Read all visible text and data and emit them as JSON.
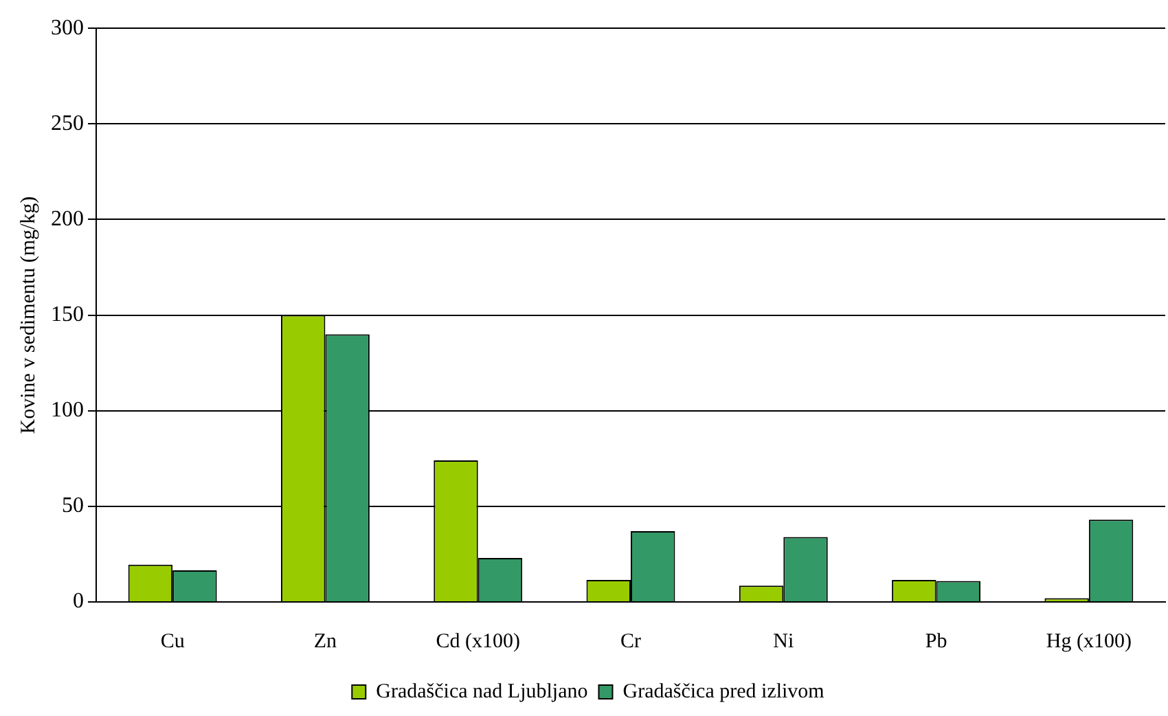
{
  "chart_data": {
    "type": "bar",
    "ylabel": "Kovine v sedimentu (mg/kg)",
    "categories": [
      "Cu",
      "Zn",
      "Cd (x100)",
      "Cr",
      "Ni",
      "Pb",
      "Hg (x100)"
    ],
    "series": [
      {
        "name": "Gradaščica nad Ljubljano",
        "color": "#99cc00",
        "values": [
          19.5,
          150,
          74,
          11.5,
          8.5,
          11.5,
          2
        ]
      },
      {
        "name": "Gradaščica pred izlivom",
        "color": "#339966",
        "values": [
          16.5,
          140,
          23,
          37,
          34,
          11,
          43
        ]
      }
    ],
    "ylim": [
      0,
      300
    ],
    "yticks": [
      0,
      50,
      100,
      150,
      200,
      250,
      300
    ],
    "grid": "y",
    "legend": "bottom"
  }
}
